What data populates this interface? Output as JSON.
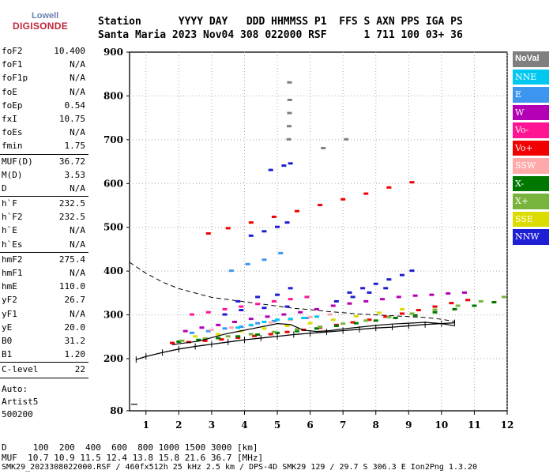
{
  "logo": {
    "brand": "Lowell",
    "product": "DIGISONDE"
  },
  "header": {
    "line1": "Station      YYYY DAY   DDD HHMMSS P1  FFS S AXN PPS IGA PS",
    "line2": "Santa Maria 2023 Nov04 308 022000 RSF      1 711 100 03+ 36"
  },
  "params": [
    {
      "label": "foF2",
      "value": "10.400"
    },
    {
      "label": "foF1",
      "value": "N/A"
    },
    {
      "label": "foF1p",
      "value": "N/A"
    },
    {
      "label": "foE",
      "value": "N/A"
    },
    {
      "label": "foEp",
      "value": "0.54"
    },
    {
      "label": "fxI",
      "value": "10.75"
    },
    {
      "label": "foEs",
      "value": "N/A"
    },
    {
      "label": "fmin",
      "value": "1.75"
    },
    {
      "sep": true
    },
    {
      "label": "MUF(D)",
      "value": "36.72"
    },
    {
      "label": "M(D)",
      "value": "3.53"
    },
    {
      "label": "D",
      "value": "N/A"
    },
    {
      "sep": true
    },
    {
      "label": "h`F",
      "value": "232.5"
    },
    {
      "label": "h`F2",
      "value": "232.5"
    },
    {
      "label": "h`E",
      "value": "N/A"
    },
    {
      "label": "h`Es",
      "value": "N/A"
    },
    {
      "sep": true
    },
    {
      "label": "hmF2",
      "value": "275.4"
    },
    {
      "label": "hmF1",
      "value": "N/A"
    },
    {
      "label": "hmE",
      "value": "110.0"
    },
    {
      "label": "yF2",
      "value": "26.7"
    },
    {
      "label": "yF1",
      "value": "N/A"
    },
    {
      "label": "yE",
      "value": "20.0"
    },
    {
      "label": "B0",
      "value": "31.2"
    },
    {
      "label": "B1",
      "value": "1.20"
    },
    {
      "sep": true
    },
    {
      "label": "C-level",
      "value": "22"
    },
    {
      "sep": true
    }
  ],
  "auto": {
    "line1": "Auto:",
    "line2": "Artist5",
    "line3": "500200"
  },
  "legend": [
    {
      "label": "NoVal",
      "color": "#7f7f7f"
    },
    {
      "label": "NNE",
      "color": "#00c8f0"
    },
    {
      "label": "E",
      "color": "#3c96f0"
    },
    {
      "label": "W",
      "color": "#b400b4"
    },
    {
      "label": "Vo-",
      "color": "#ff1493"
    },
    {
      "label": "Vo+",
      "color": "#f00000"
    },
    {
      "label": "SSW",
      "color": "#ffaaaa"
    },
    {
      "label": "X-",
      "color": "#007800"
    },
    {
      "label": "X+",
      "color": "#78b43c"
    },
    {
      "label": "SSE",
      "color": "#dcdc00"
    },
    {
      "label": "NNW",
      "color": "#1e1ed2"
    }
  ],
  "footer": {
    "line1": "D     100  200  400  600  800 1000 1500 3000 [km]",
    "line2": "MUF  10.7 10.9 11.5 12.4 13.8 15.8 21.6 36.7 [MHz]",
    "line3": "SMK29_2023308022000.RSF / 460fx512h 25 kHz 2.5 km / DPS-4D SMK29 129 / 29.7 S 306.3 E Ion2Png 1.3.20"
  },
  "chart_data": {
    "type": "scatter",
    "title": "",
    "xlabel": "",
    "ylabel": "",
    "xlim": [
      0.5,
      12
    ],
    "ylim": [
      80,
      900
    ],
    "ytick_labels": [
      "80",
      "200",
      "300",
      "400",
      "500",
      "600",
      "700",
      "800",
      "900"
    ],
    "xtick_labels": [
      "1",
      "2",
      "3",
      "4",
      "5",
      "6",
      "7",
      "8",
      "9",
      "10",
      "11",
      "12"
    ],
    "series": [
      {
        "name": "Vo+",
        "color": "#f00000",
        "x": [
          1.8,
          2.3,
          2.8,
          3.3,
          3.8,
          4.3,
          4.8,
          5.3,
          5.8,
          6.3,
          6.8,
          7.3,
          7.8,
          8.3,
          8.8,
          9.3,
          9.8,
          10.3,
          10.8,
          2.9,
          3.5,
          4.2,
          4.9,
          5.6,
          6.3,
          7.0,
          7.7,
          8.4,
          9.1
        ],
        "y": [
          235,
          237,
          240,
          243,
          247,
          251,
          255,
          260,
          265,
          270,
          276,
          282,
          288,
          295,
          302,
          310,
          318,
          326,
          333,
          485,
          497,
          510,
          523,
          536,
          550,
          563,
          576,
          590,
          602
        ]
      },
      {
        "name": "NNW",
        "color": "#1e1ed2",
        "x": [
          4.2,
          4.6,
          5.0,
          5.3,
          3.8,
          4.4,
          5.0,
          5.4,
          7.2,
          7.6,
          8.0,
          8.4,
          8.8,
          9.1,
          6.8,
          7.3,
          7.8,
          8.3,
          4.8,
          5.2,
          5.4,
          3.4,
          3.9,
          4.6,
          5.3
        ],
        "y": [
          480,
          490,
          500,
          510,
          330,
          340,
          345,
          360,
          350,
          360,
          370,
          380,
          390,
          400,
          330,
          340,
          350,
          360,
          630,
          640,
          645,
          300,
          310,
          315,
          318
        ]
      },
      {
        "name": "W",
        "color": "#b400b4",
        "x": [
          2.2,
          2.7,
          3.2,
          3.7,
          4.2,
          4.7,
          5.2,
          5.7,
          6.2,
          6.7,
          7.2,
          7.7,
          8.2,
          8.7,
          9.2,
          9.7,
          10.2,
          10.7
        ],
        "y": [
          262,
          270,
          276,
          283,
          290,
          295,
          300,
          305,
          312,
          320,
          325,
          330,
          335,
          340,
          343,
          345,
          348,
          350
        ]
      },
      {
        "name": "E",
        "color": "#3c96f0",
        "x": [
          2.4,
          2.9,
          3.4,
          3.9,
          4.4,
          4.9,
          5.4,
          5.9,
          3.6,
          4.1,
          4.6,
          5.1
        ],
        "y": [
          258,
          262,
          268,
          272,
          280,
          285,
          288,
          292,
          400,
          415,
          425,
          440
        ]
      },
      {
        "name": "X-",
        "color": "#007800",
        "x": [
          2.0,
          2.6,
          3.2,
          3.8,
          4.4,
          5.0,
          5.6,
          6.2,
          6.8,
          7.4,
          8.0,
          8.6,
          9.2,
          9.8,
          10.4,
          11.0,
          11.6
        ],
        "y": [
          238,
          242,
          246,
          250,
          254,
          258,
          262,
          268,
          274,
          280,
          286,
          292,
          298,
          305,
          312,
          320,
          328
        ]
      },
      {
        "name": "X+",
        "color": "#78b43c",
        "x": [
          2.1,
          2.8,
          3.5,
          4.2,
          4.9,
          5.6,
          6.3,
          7.0,
          7.7,
          8.4,
          9.1,
          9.8,
          10.5,
          11.2,
          11.9
        ],
        "y": [
          240,
          245,
          250,
          255,
          260,
          266,
          272,
          279,
          286,
          294,
          302,
          311,
          320,
          330,
          340
        ]
      },
      {
        "name": "SSE",
        "color": "#dcdc00",
        "x": [
          2.5,
          3.2,
          3.9,
          4.6,
          5.3,
          6.0,
          6.7,
          7.4,
          8.1,
          8.8
        ],
        "y": [
          250,
          255,
          262,
          268,
          274,
          280,
          288,
          296,
          304,
          312
        ]
      },
      {
        "name": "SSW",
        "color": "#ffaaaa",
        "x": [
          3.0,
          3.6,
          4.2,
          4.8,
          5.4,
          6.0,
          6.6
        ],
        "y": [
          265,
          270,
          275,
          282,
          288,
          294,
          300
        ]
      },
      {
        "name": "NNE",
        "color": "#00c8f0",
        "x": [
          3.8,
          4.2,
          4.6,
          5.0,
          5.4,
          5.8,
          6.2
        ],
        "y": [
          270,
          276,
          283,
          288,
          290,
          292,
          295
        ]
      },
      {
        "name": "Vo-",
        "color": "#ff1493",
        "x": [
          2.4,
          2.9,
          3.4,
          3.9,
          4.4,
          4.9,
          5.4,
          5.9
        ],
        "y": [
          300,
          305,
          312,
          318,
          324,
          330,
          335,
          340
        ]
      },
      {
        "name": "NoVal",
        "color": "#7f7f7f",
        "x": [
          5.35,
          5.36,
          5.37,
          5.38,
          5.37,
          6.4,
          7.1
        ],
        "y": [
          700,
          730,
          760,
          790,
          830,
          680,
          700
        ]
      }
    ],
    "traces": {
      "virtual_height": {
        "x": [
          0.7,
          1.0,
          1.5,
          2.0,
          2.5,
          3.0,
          3.5,
          4.0,
          4.5,
          5.0,
          5.5,
          6.0,
          6.5,
          7.0,
          7.5,
          8.0,
          8.5,
          9.0,
          9.5,
          10.0,
          10.4
        ],
        "y": [
          198,
          205,
          214,
          222,
          228,
          233,
          238,
          243,
          247,
          251,
          255,
          258,
          261,
          264,
          267,
          270,
          272,
          275,
          278,
          280,
          282
        ]
      },
      "true_height": {
        "x": [
          1.8,
          2.2,
          2.6,
          3.0,
          3.4,
          3.8,
          4.2,
          4.6,
          5.0,
          5.4,
          5.8,
          6.2,
          6.6,
          7.0,
          7.5,
          8.0,
          8.5,
          9.0,
          9.5,
          10.0,
          10.4
        ],
        "y": [
          232,
          236,
          240,
          248,
          256,
          262,
          268,
          274,
          280,
          278,
          265,
          262,
          264,
          268,
          272,
          276,
          279,
          281,
          283,
          280,
          275
        ]
      },
      "extrapolation": {
        "x": [
          0.5,
          1.0,
          1.5,
          2.0,
          2.5,
          3.0,
          3.5,
          4.0,
          4.5,
          5.0,
          5.5,
          6.0,
          6.5,
          7.0,
          7.5,
          8.0,
          8.5,
          9.0,
          9.5,
          10.0,
          10.4
        ],
        "y": [
          420,
          395,
          375,
          360,
          350,
          340,
          335,
          330,
          325,
          320,
          315,
          312,
          308,
          305,
          302,
          300,
          298,
          296,
          294,
          290,
          285
        ]
      }
    }
  }
}
